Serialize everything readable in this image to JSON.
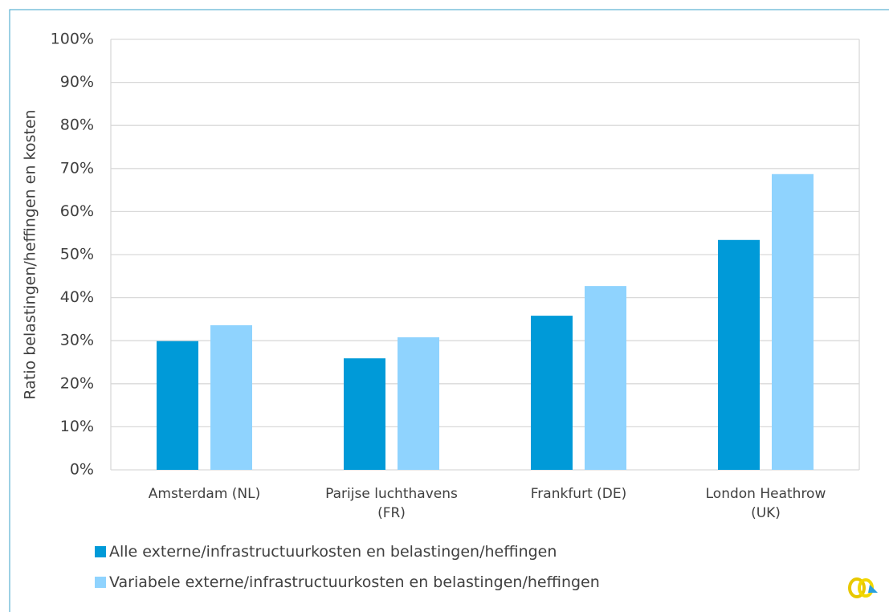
{
  "chart_data": {
    "type": "bar",
    "y_label": "Ratio belastingen/heffingen en kosten",
    "categories": [
      "Amsterdam (NL)",
      "Parijse luchthavens\n(FR)",
      "Frankfurt (DE)",
      "London Heathrow\n(UK)"
    ],
    "series": [
      {
        "name": "Alle externe/infrastructuurkosten en belastingen/heffingen",
        "color": "#009ad8",
        "values": [
          29.9,
          25.9,
          35.8,
          53.4
        ]
      },
      {
        "name": "Variabele externe/infrastructuurkosten en belastingen/heffingen",
        "color": "#8fd3fe",
        "values": [
          33.6,
          30.8,
          42.7,
          68.7
        ]
      }
    ],
    "ylim": [
      0,
      100
    ],
    "yticks": [
      {
        "value": 0,
        "label": "0%"
      },
      {
        "value": 10,
        "label": "10%"
      },
      {
        "value": 20,
        "label": "20%"
      },
      {
        "value": 30,
        "label": "30%"
      },
      {
        "value": 40,
        "label": "40%"
      },
      {
        "value": 50,
        "label": "50%"
      },
      {
        "value": 60,
        "label": "60%"
      },
      {
        "value": 70,
        "label": "70%"
      },
      {
        "value": 80,
        "label": "80%"
      },
      {
        "value": 90,
        "label": "90%"
      },
      {
        "value": 100,
        "label": "100%"
      }
    ],
    "grid": true,
    "legend": "bottom"
  }
}
